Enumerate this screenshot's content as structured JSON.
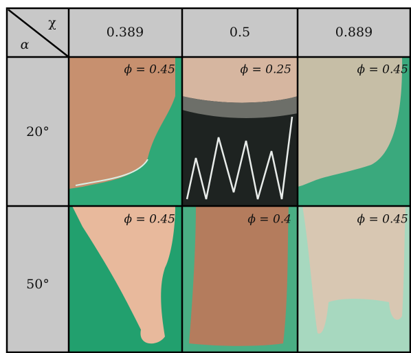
{
  "header": {
    "corner_top": "χ",
    "corner_bottom": "α",
    "columns": [
      "0.389",
      "0.5",
      "0.889"
    ]
  },
  "rows": [
    {
      "label": "20°",
      "cells": [
        "ϕ = 0.45",
        "ϕ = 0.25",
        "ϕ = 0.45"
      ]
    },
    {
      "label": "50°",
      "cells": [
        "ϕ = 0.45",
        "ϕ = 0.4",
        "ϕ = 0.45"
      ]
    }
  ]
}
